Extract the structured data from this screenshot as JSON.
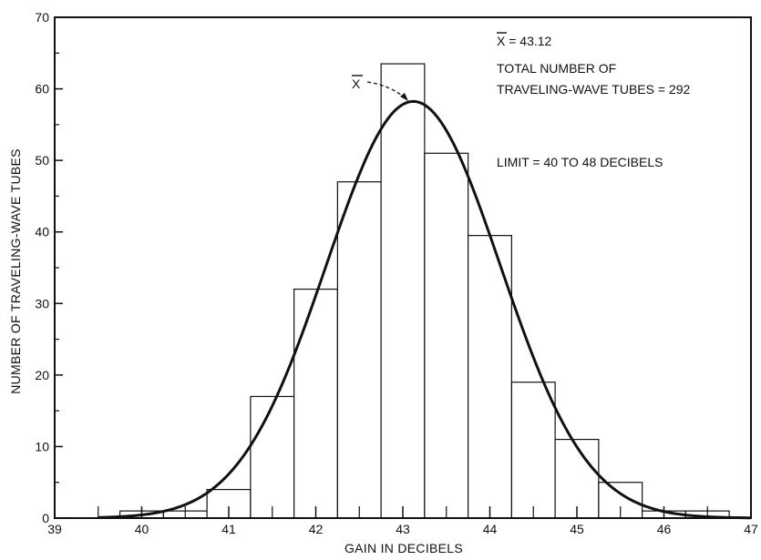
{
  "chart_data": {
    "type": "bar",
    "title": "",
    "xlabel": "GAIN IN DECIBELS",
    "ylabel": "NUMBER OF TRAVELING-WAVE TUBES",
    "xlim": [
      39,
      47
    ],
    "ylim": [
      0,
      70
    ],
    "x_ticks": [
      39,
      40,
      41,
      42,
      43,
      44,
      45,
      46,
      47
    ],
    "y_ticks": [
      0,
      10,
      20,
      30,
      40,
      50,
      60,
      70
    ],
    "bin_width": 0.5,
    "bins": [
      {
        "start": 39.75,
        "end": 40.25,
        "count": 1
      },
      {
        "start": 40.25,
        "end": 40.75,
        "count": 1
      },
      {
        "start": 40.75,
        "end": 41.25,
        "count": 4
      },
      {
        "start": 41.25,
        "end": 41.75,
        "count": 17
      },
      {
        "start": 41.75,
        "end": 42.25,
        "count": 32
      },
      {
        "start": 42.25,
        "end": 42.75,
        "count": 47
      },
      {
        "start": 42.75,
        "end": 43.25,
        "count": 63.5
      },
      {
        "start": 43.25,
        "end": 43.75,
        "count": 51
      },
      {
        "start": 43.75,
        "end": 44.25,
        "count": 39.5
      },
      {
        "start": 44.25,
        "end": 44.75,
        "count": 19
      },
      {
        "start": 44.75,
        "end": 45.25,
        "count": 11
      },
      {
        "start": 45.25,
        "end": 45.75,
        "count": 5
      },
      {
        "start": 45.75,
        "end": 46.25,
        "count": 1
      },
      {
        "start": 46.25,
        "end": 46.75,
        "count": 1
      }
    ],
    "fit_curve": {
      "type": "normal",
      "mean": 43.12,
      "std": 1.0,
      "total": 292,
      "bin_width": 0.5,
      "peak_label": "X"
    },
    "annotations": {
      "mean_line": "X = 43.12",
      "total_line1": "TOTAL NUMBER OF",
      "total_line2": "TRAVELING-WAVE TUBES = 292",
      "limit_line": "LIMIT = 40 TO 48 DECIBELS"
    },
    "grid": false,
    "colors": {
      "line": "#111111",
      "fill": "#ffffff"
    }
  }
}
